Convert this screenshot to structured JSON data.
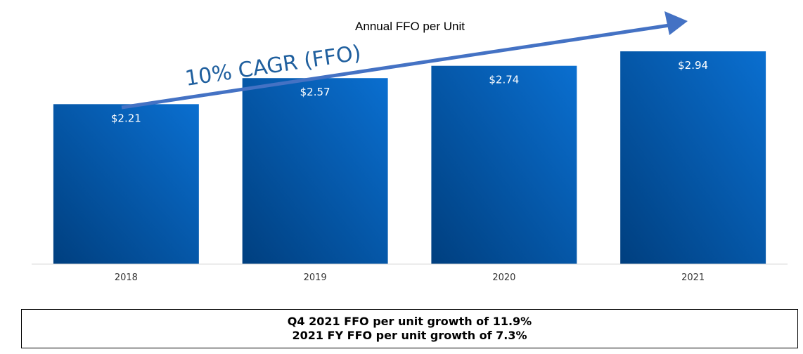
{
  "chart_data": {
    "type": "bar",
    "title": "Annual FFO per Unit",
    "categories": [
      "2018",
      "2019",
      "2020",
      "2021"
    ],
    "values": [
      2.21,
      2.57,
      2.74,
      2.94
    ],
    "value_labels": [
      "$2.21",
      "$2.57",
      "$2.74",
      "$2.94"
    ],
    "xlabel": "",
    "ylabel": "",
    "ylim": [
      0,
      3.3
    ],
    "grid": false,
    "annotation": "10% CAGR (FFO)"
  },
  "summary": {
    "line1": "Q4 2021 FFO per unit growth of 11.9%",
    "line2": "2021 FY FFO per unit growth of 7.3%"
  },
  "colors": {
    "bar_light": "#0a6fd0",
    "bar_dark": "#003f7f",
    "arrow": "#4472c4",
    "annotation": "#1f5f9e",
    "axis": "#d9d9d9"
  }
}
